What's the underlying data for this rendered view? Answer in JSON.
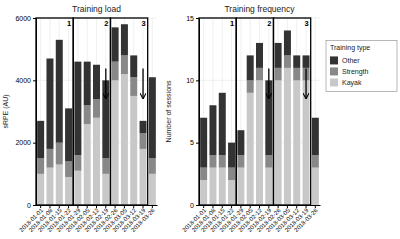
{
  "chart_data": [
    {
      "type": "bar",
      "stacked": true,
      "title": "Training load",
      "y_label": "sRPE (AU)",
      "categories": [
        "2018-01-01",
        "2018-01-08",
        "2018-01-15",
        "2018-01-22",
        "2018-01-29",
        "2018-02-05",
        "2018-02-12",
        "2018-02-19",
        "2018-02-26",
        "2018-03-05",
        "2018-03-12",
        "2018-03-19",
        "2018-03-26"
      ],
      "series": [
        {
          "name": "Kayak",
          "color": "#c8c8c8",
          "values": [
            1000,
            1200,
            1300,
            900,
            1100,
            2600,
            2800,
            1000,
            4000,
            4200,
            3500,
            1800,
            1000
          ]
        },
        {
          "name": "Strength",
          "color": "#888888",
          "values": [
            500,
            600,
            700,
            500,
            500,
            600,
            600,
            500,
            600,
            600,
            600,
            500,
            500
          ]
        },
        {
          "name": "Other",
          "color": "#333333",
          "values": [
            1200,
            2900,
            3300,
            1700,
            3000,
            1400,
            1100,
            2500,
            1100,
            1000,
            700,
            400,
            2600
          ]
        }
      ],
      "ylim": [
        0,
        6000
      ],
      "yticks": [
        0,
        2000,
        4000,
        6000
      ],
      "grid": true,
      "annotations": [
        {
          "text": "1",
          "from": "2018-01-01",
          "to": "2018-01-22"
        },
        {
          "text": "2",
          "from": "2018-01-29",
          "to": "2018-02-19"
        },
        {
          "text": "3",
          "from": "2018-02-26",
          "to": "2018-03-19"
        }
      ],
      "arrows": [
        "2018-02-19",
        "2018-03-19"
      ]
    },
    {
      "type": "bar",
      "stacked": true,
      "title": "Training frequency",
      "y_label": "Number of sessions",
      "categories": [
        "2018-01-01",
        "2018-01-08",
        "2018-01-15",
        "2018-01-22",
        "2018-01-29",
        "2018-02-05",
        "2018-02-12",
        "2018-02-19",
        "2018-02-26",
        "2018-03-05",
        "2018-03-12",
        "2018-03-19",
        "2018-03-26"
      ],
      "series": [
        {
          "name": "Kayak",
          "color": "#c8c8c8",
          "values": [
            2,
            3,
            3,
            2,
            3,
            9,
            10,
            3,
            10,
            11,
            10,
            10,
            3
          ]
        },
        {
          "name": "Strength",
          "color": "#888888",
          "values": [
            1,
            1,
            1,
            1,
            1,
            1,
            1,
            1,
            1,
            1,
            1,
            1,
            1
          ]
        },
        {
          "name": "Other",
          "color": "#333333",
          "values": [
            4,
            4,
            5,
            2,
            2,
            2,
            2,
            6,
            2,
            2,
            1,
            1,
            3
          ]
        }
      ],
      "ylim": [
        0,
        15
      ],
      "yticks": [
        0,
        5,
        10,
        15
      ],
      "grid": true,
      "annotations": [
        {
          "text": "1",
          "from": "2018-01-01",
          "to": "2018-01-22"
        },
        {
          "text": "2",
          "from": "2018-01-29",
          "to": "2018-02-19"
        },
        {
          "text": "3",
          "from": "2018-02-26",
          "to": "2018-03-19"
        }
      ],
      "arrows": [
        "2018-02-19",
        "2018-03-19"
      ],
      "legend": "right",
      "legend_title": "Training type"
    }
  ]
}
